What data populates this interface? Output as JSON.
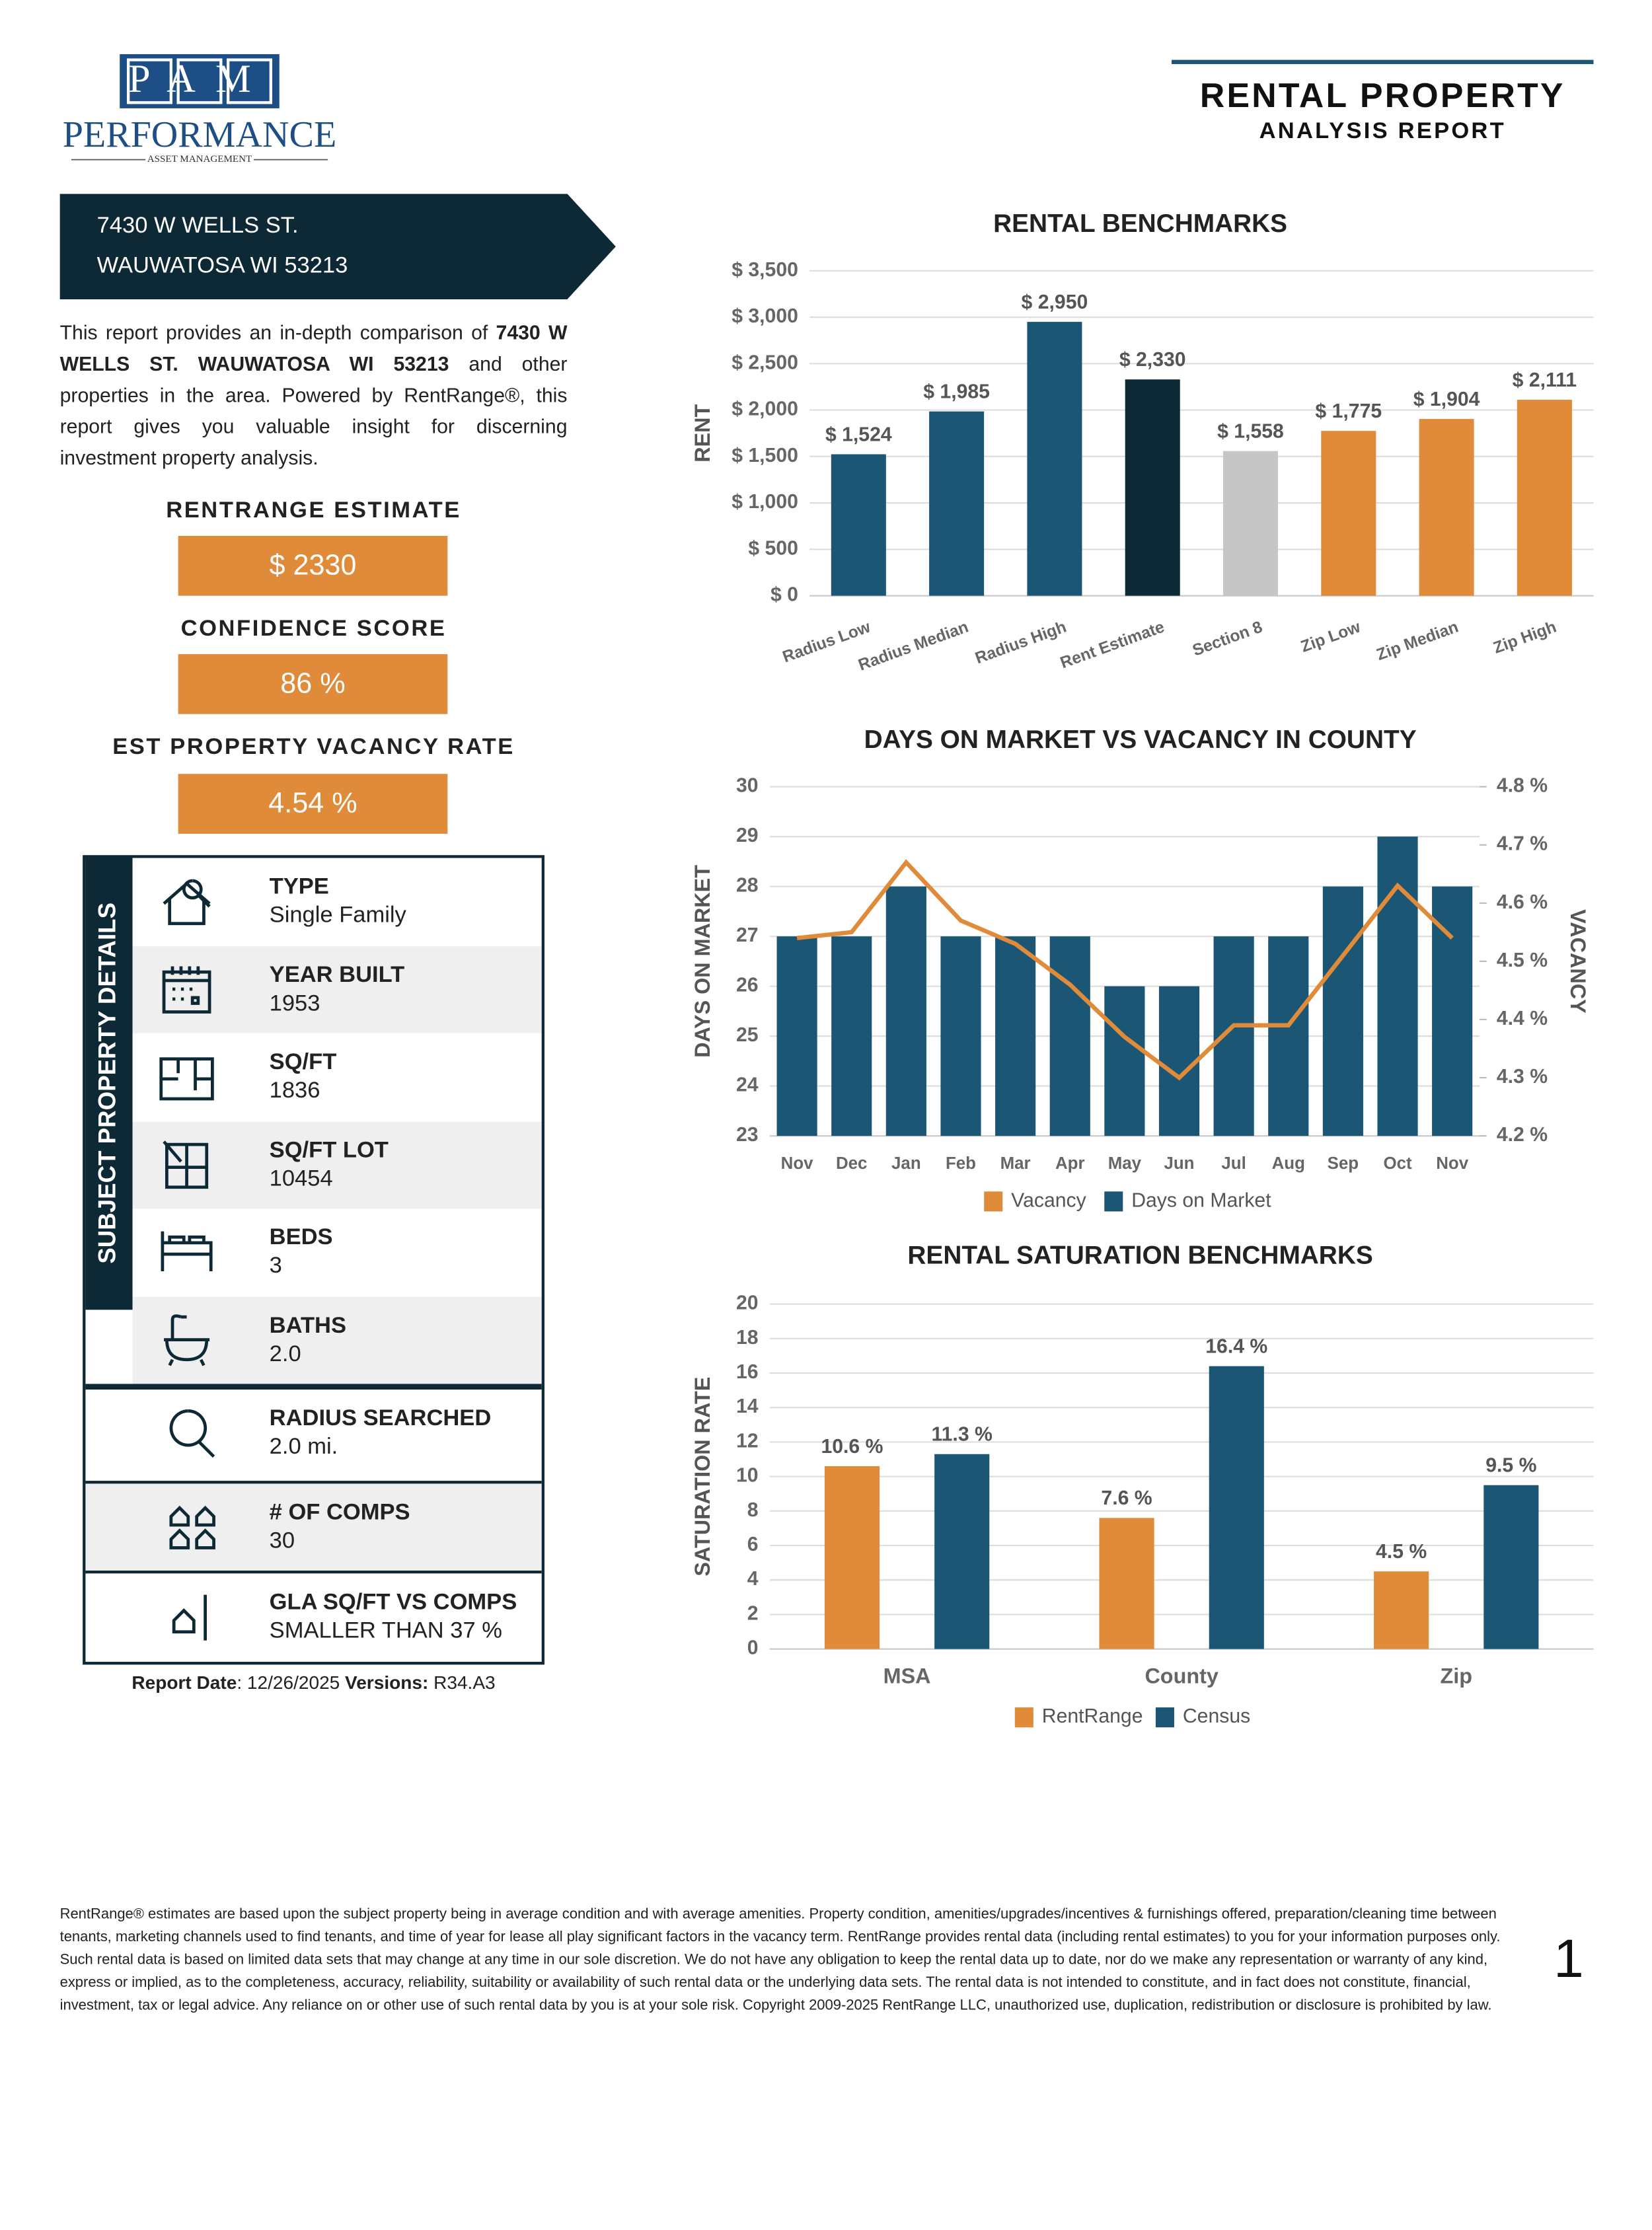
{
  "header": {
    "logo_top": "PAM",
    "logo_name": "PERFORMANCE",
    "logo_sub": "ASSET MANAGEMENT",
    "title": "RENTAL PROPERTY",
    "subtitle": "ANALYSIS REPORT"
  },
  "address": {
    "line1": "7430 W WELLS ST.",
    "line2": "WAUWATOSA WI 53213"
  },
  "intro": {
    "before": "This report provides an in-depth comparison of ",
    "bold": "7430 W WELLS ST. WAUWATOSA WI 53213",
    "after": " and other properties in the area. Powered by RentRange®, this report gives you valuable insight for discerning investment property analysis."
  },
  "estimates": [
    {
      "label": "RENTRANGE ESTIMATE",
      "value": "$ 2330"
    },
    {
      "label": "CONFIDENCE SCORE",
      "value": "86 %"
    },
    {
      "label": "EST PROPERTY VACANCY RATE",
      "value": "4.54 %"
    }
  ],
  "details": {
    "title": "SUBJECT PROPERTY DETAILS",
    "items": [
      {
        "label": "TYPE",
        "value": "Single Family"
      },
      {
        "label": "YEAR BUILT",
        "value": "1953"
      },
      {
        "label": "SQ/FT",
        "value": "1836"
      },
      {
        "label": "SQ/FT LOT",
        "value": "10454"
      },
      {
        "label": "BEDS",
        "value": "3"
      },
      {
        "label": "BATHS",
        "value": "2.0"
      }
    ],
    "extra": [
      {
        "label": "RADIUS SEARCHED",
        "value": "2.0 mi."
      },
      {
        "label": "# OF COMPS",
        "value": "30"
      },
      {
        "label": "GLA SQ/FT VS COMPS",
        "value": "SMALLER THAN 37 %"
      }
    ]
  },
  "report_date": {
    "label": "Report Date",
    "value": ": 12/26/2025 ",
    "version_label": "Versions:",
    "version": " R34.A3"
  },
  "disclaimer": "RentRange® estimates are based upon the subject property being in average condition and with average amenities. Property condition, amenities/upgrades/incentives & furnishings offered, preparation/cleaning time between tenants, marketing channels used to find tenants, and time of year for lease all play significant factors in the vacancy term. RentRange provides rental data (including rental estimates) to you for your information purposes only. Such rental data is based on limited data sets that may change at any time in our sole discretion. We do not have any obligation to keep the rental data up to date, nor do we make any representation or warranty of any kind, express or implied, as to the completeness, accuracy, reliability, suitability or availability of such rental data or the underlying data sets. The rental data is not intended to constitute, and in fact does not constitute, financial, investment, tax or legal advice. Any reliance on or other use of such rental data by you is at your sole risk. Copyright 2009-2025 RentRange LLC, unauthorized use, duplication, redistribution or disclosure is prohibited by law.",
  "page_number": "1",
  "chart_data": [
    {
      "type": "bar",
      "title": "RENTAL BENCHMARKS",
      "y_label": "RENT",
      "categories": [
        "Radius Low",
        "Radius Median",
        "Radius High",
        "Rent Estimate",
        "Section 8",
        "Zip Low",
        "Zip Median",
        "Zip High"
      ],
      "values": [
        1524,
        1985,
        2950,
        2330,
        1558,
        1775,
        1904,
        2111
      ],
      "value_labels": [
        "$ 1,524",
        "$ 1,985",
        "$ 2,950",
        "$ 2,330",
        "$ 1,558",
        "$ 1,775",
        "$ 1,904",
        "$ 2,111"
      ],
      "colors": [
        "#1b5775",
        "#1b5775",
        "#1b5775",
        "#0e2936",
        "#c6c6c6",
        "#e08b3a",
        "#e08b3a",
        "#e08b3a"
      ],
      "ylim": [
        0,
        3500
      ],
      "yticks": [
        {
          "value": 0,
          "label": "$ 0"
        },
        {
          "value": 500,
          "label": "$ 500"
        },
        {
          "value": 1000,
          "label": "$ 1,000"
        },
        {
          "value": 1500,
          "label": "$ 1,500"
        },
        {
          "value": 2000,
          "label": "$ 2,000"
        },
        {
          "value": 2500,
          "label": "$ 2,500"
        },
        {
          "value": 3000,
          "label": "$ 3,000"
        },
        {
          "value": 3500,
          "label": "$ 3,500"
        }
      ],
      "grid": true
    },
    {
      "type": "combo",
      "title": "DAYS ON MARKET VS VACANCY IN COUNTY",
      "y_label": "DAYS ON MARKET",
      "y2_label": "VACANCY",
      "categories": [
        "Nov",
        "Dec",
        "Jan",
        "Feb",
        "Mar",
        "Apr",
        "May",
        "Jun",
        "Jul",
        "Aug",
        "Sep",
        "Oct",
        "Nov"
      ],
      "series": [
        {
          "name": "Vacancy",
          "color": "#e08b3a",
          "axis": "y2",
          "values": [
            4.54,
            4.55,
            4.67,
            4.57,
            4.53,
            4.46,
            4.37,
            4.3,
            4.39,
            4.39,
            4.51,
            4.63,
            4.54
          ]
        },
        {
          "name": "Days on Market",
          "color": "#1b5775",
          "values": [
            27,
            27,
            28,
            27,
            27,
            27,
            26,
            26,
            27,
            27,
            28,
            29,
            28
          ]
        }
      ],
      "ylim": [
        23,
        30
      ],
      "yticks": [
        23,
        24,
        25,
        26,
        27,
        28,
        29,
        30
      ],
      "y2lim": [
        4.2,
        4.8
      ],
      "y2ticks": [
        {
          "value": 4.2,
          "label": "4.2 %"
        },
        {
          "value": 4.3,
          "label": "4.3 %"
        },
        {
          "value": 4.4,
          "label": "4.4 %"
        },
        {
          "value": 4.5,
          "label": "4.5 %"
        },
        {
          "value": 4.6,
          "label": "4.6 %"
        },
        {
          "value": 4.7,
          "label": "4.7 %"
        },
        {
          "value": 4.8,
          "label": "4.8 %"
        }
      ],
      "grid": true,
      "legend": "bottom"
    },
    {
      "type": "bar",
      "title": "RENTAL SATURATION BENCHMARKS",
      "y_label": "SATURATION RATE",
      "categories": [
        "MSA",
        "County",
        "Zip"
      ],
      "series": [
        {
          "name": "RentRange",
          "color": "#e08b3a",
          "values": [
            10.6,
            7.6,
            4.5
          ],
          "value_labels": [
            "10.6 %",
            "7.6 %",
            "4.5 %"
          ]
        },
        {
          "name": "Census",
          "color": "#1b5775",
          "values": [
            11.3,
            16.4,
            9.5
          ],
          "value_labels": [
            "11.3 %",
            "16.4 %",
            "9.5 %"
          ]
        }
      ],
      "ylim": [
        0,
        20
      ],
      "yticks": [
        0,
        2,
        4,
        6,
        8,
        10,
        12,
        14,
        16,
        18,
        20
      ],
      "grid": true,
      "legend": "bottom"
    }
  ]
}
